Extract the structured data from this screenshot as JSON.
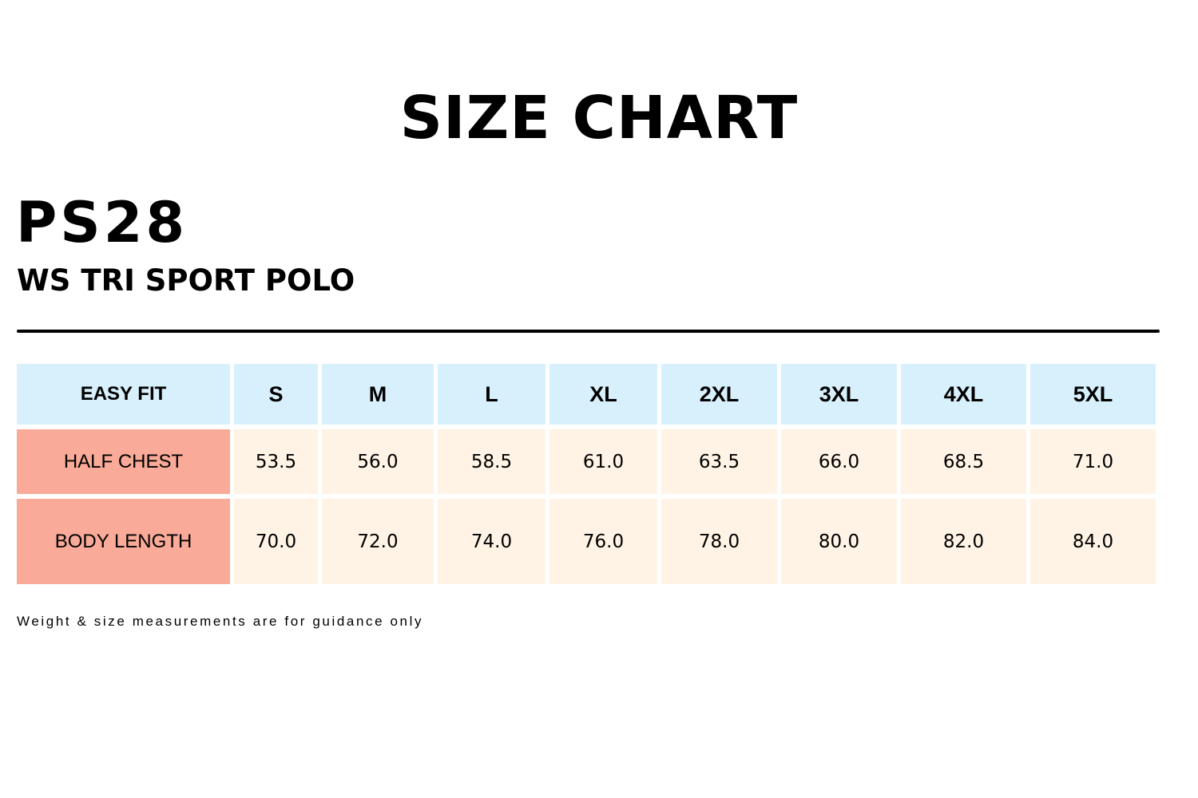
{
  "title": "SIZE CHART",
  "product_code": "PS28",
  "product_name": "WS TRI SPORT POLO",
  "colors": {
    "header_bg": "#d8f0fc",
    "label_bg": "#f9aa98",
    "value_bg": "#fef3e4"
  },
  "table": {
    "corner": "EASY FIT",
    "sizes": [
      "S",
      "M",
      "L",
      "XL",
      "2XL",
      "3XL",
      "4XL",
      "5XL"
    ],
    "rows": [
      {
        "label": "HALF CHEST",
        "values": [
          "53.5",
          "56.0",
          "58.5",
          "61.0",
          "63.5",
          "66.0",
          "68.5",
          "71.0"
        ]
      },
      {
        "label": "BODY LENGTH",
        "values": [
          "70.0",
          "72.0",
          "74.0",
          "76.0",
          "78.0",
          "80.0",
          "82.0",
          "84.0"
        ]
      }
    ]
  },
  "footnote": "Weight & size measurements are for guidance only"
}
